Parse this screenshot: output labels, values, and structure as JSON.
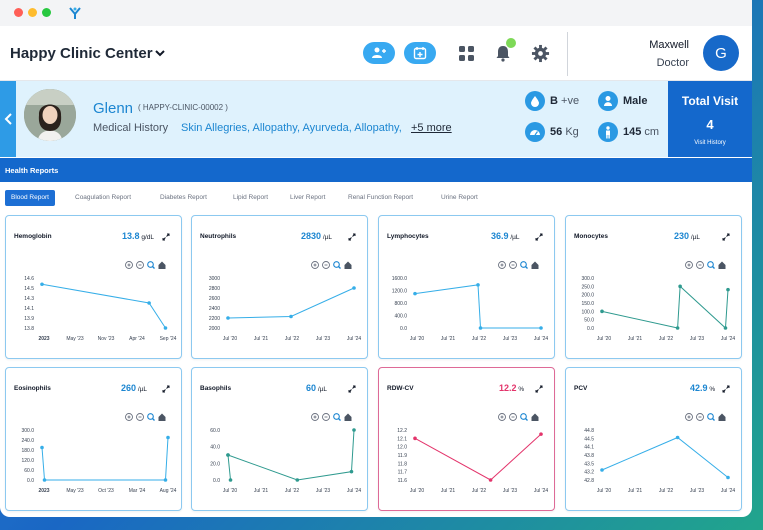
{
  "app": {
    "clinic_name": "Happy Clinic Center",
    "user_name": "Maxwell",
    "user_role": "Doctor",
    "user_initial": "G"
  },
  "patient": {
    "name": "Glenn",
    "id": "( HAPPY-CLINIC-00002 )",
    "medical_history_label": "Medical History",
    "medical_history": "Skin Allegries, Allopathy, Ayurveda, Allopathy,",
    "more_link": "+5 more",
    "blood_group": "B",
    "blood_group_sign": "+ve",
    "gender": "Male",
    "weight": "56",
    "weight_unit": "Kg",
    "height": "145",
    "height_unit": "cm"
  },
  "visits": {
    "title": "Total Visit",
    "count": "4",
    "link": "Visit History"
  },
  "reports": {
    "section_title": "Health Reports",
    "tabs": [
      "Blood Report",
      "Coagulation Report",
      "Diabetes Report",
      "Lipid Report",
      "Liver Report",
      "Renal Function Report",
      "Urine Report"
    ],
    "active_tab": "Blood Report"
  },
  "colors": {
    "primary": "#1468cc",
    "accent": "#38a9f1",
    "line_blue": "#36aee8",
    "line_teal": "#2f9a8f",
    "line_pink": "#e3346b",
    "notification": "#7ed957"
  },
  "icons": [
    "add-patient-icon",
    "add-appointment-icon",
    "grid-icon",
    "bell-icon",
    "gear-icon",
    "blood-drop-icon",
    "gender-icon",
    "weight-scale-icon",
    "height-icon",
    "expand-icon",
    "zoom-in-icon",
    "zoom-out-icon",
    "magnifier-icon",
    "home-icon"
  ],
  "chart_data": [
    {
      "type": "line",
      "title": "Hemoglobin",
      "value": "13.8",
      "unit": "g/dL",
      "value_color": "#1c86d1",
      "line_color": "#36aee8",
      "x": [
        "2023 May '23",
        "Nov '23",
        "Apr '24",
        "Sep '24",
        ""
      ],
      "x_labels": [
        "2023",
        "May '23",
        "Nov '23",
        "Apr '24",
        "Sep '24"
      ],
      "y_ticks": [
        "14.6",
        "14.5",
        "14.3",
        "14.1",
        "13.9",
        "13.8"
      ],
      "ylim": [
        13.8,
        14.6
      ],
      "points": [
        [
          0,
          14.5
        ],
        [
          0.85,
          14.2
        ],
        [
          0.98,
          13.8
        ]
      ]
    },
    {
      "type": "line",
      "title": "Neutrophils",
      "value": "2830",
      "unit": "/µL",
      "value_color": "#1c86d1",
      "line_color": "#36aee8",
      "x_labels": [
        "Jul '20",
        "Jul '21",
        "Jul '22",
        "Jul '23",
        "Jul '24"
      ],
      "y_ticks": [
        "3000",
        "2800",
        "2600",
        "2400",
        "2200",
        "2000"
      ],
      "ylim": [
        2000,
        3000
      ],
      "points": [
        [
          0,
          2200
        ],
        [
          0.5,
          2230
        ],
        [
          1,
          2800
        ]
      ]
    },
    {
      "type": "line",
      "title": "Lymphocytes",
      "value": "36.9",
      "unit": "/µL",
      "value_color": "#1c86d1",
      "line_color": "#36aee8",
      "x_labels": [
        "Jul '20",
        "Jul '21",
        "Jul '22",
        "Jul '23",
        "Jul '24"
      ],
      "y_ticks": [
        "1600.0",
        "1200.0",
        "800.0",
        "400.0",
        "0.0"
      ],
      "ylim": [
        0,
        1600
      ],
      "points": [
        [
          0,
          1100
        ],
        [
          0.5,
          1380
        ],
        [
          0.52,
          0
        ],
        [
          1,
          0
        ]
      ]
    },
    {
      "type": "line",
      "title": "Monocytes",
      "value": "230",
      "unit": "/µL",
      "value_color": "#1c86d1",
      "line_color": "#2f9a8f",
      "x_labels": [
        "Jul '20",
        "Jul '21",
        "Jul '22",
        "Jul '23",
        "Jul '24"
      ],
      "y_ticks": [
        "300.0",
        "250.0",
        "200.0",
        "150.0",
        "100.0",
        "50.0",
        "0.0"
      ],
      "ylim": [
        0,
        300
      ],
      "points": [
        [
          0,
          100
        ],
        [
          0.6,
          0
        ],
        [
          0.62,
          250
        ],
        [
          0.98,
          0
        ],
        [
          1,
          230
        ]
      ]
    },
    {
      "type": "line",
      "title": "Eosinophils",
      "value": "260",
      "unit": "/µL",
      "value_color": "#1c86d1",
      "line_color": "#36aee8",
      "x_labels": [
        "2023",
        "May '23",
        "Oct '23",
        "Mar '24",
        "Aug '24"
      ],
      "y_ticks": [
        "300.0",
        "240.0",
        "180.0",
        "120.0",
        "60.0",
        "0.0"
      ],
      "ylim": [
        0,
        300
      ],
      "points": [
        [
          0,
          195
        ],
        [
          0.02,
          0
        ],
        [
          0.98,
          0
        ],
        [
          1,
          255
        ]
      ]
    },
    {
      "type": "line",
      "title": "Basophils",
      "value": "60",
      "unit": "/µL",
      "value_color": "#1c86d1",
      "line_color": "#2f9a8f",
      "x_labels": [
        "Jul '20",
        "Jul '21",
        "Jul '22",
        "Jul '23",
        "Jul '24"
      ],
      "y_ticks": [
        "60.0",
        "40.0",
        "20.0",
        "0.0"
      ],
      "ylim": [
        0,
        60
      ],
      "points": [
        [
          0,
          30
        ],
        [
          0.02,
          0
        ],
        [
          0,
          30
        ],
        [
          0.55,
          0
        ],
        [
          0.98,
          10
        ],
        [
          1,
          60
        ]
      ]
    },
    {
      "type": "line",
      "title": "RDW-CV",
      "value": "12.2",
      "unit": "%",
      "value_color": "#e3346b",
      "line_color": "#e3346b",
      "x_labels": [
        "Jul '20",
        "Jul '21",
        "Jul '22",
        "Jul '23",
        "Jul '24"
      ],
      "y_ticks": [
        "12.2",
        "12.1",
        "12.0",
        "11.9",
        "11.8",
        "11.7",
        "11.6"
      ],
      "ylim": [
        11.6,
        12.2
      ],
      "points": [
        [
          0,
          12.1
        ],
        [
          0.6,
          11.6
        ],
        [
          1,
          12.15
        ]
      ]
    },
    {
      "type": "line",
      "title": "PCV",
      "value": "42.9",
      "unit": "%",
      "value_color": "#1c86d1",
      "line_color": "#36aee8",
      "x_labels": [
        "Jul '20",
        "Jul '21",
        "Jul '22",
        "Jul '23",
        "Jul '24"
      ],
      "y_ticks": [
        "44.8",
        "44.5",
        "44.1",
        "43.8",
        "43.5",
        "43.2",
        "42.8"
      ],
      "ylim": [
        42.8,
        44.8
      ],
      "points": [
        [
          0,
          43.2
        ],
        [
          0.6,
          44.5
        ],
        [
          1,
          42.9
        ]
      ]
    }
  ]
}
